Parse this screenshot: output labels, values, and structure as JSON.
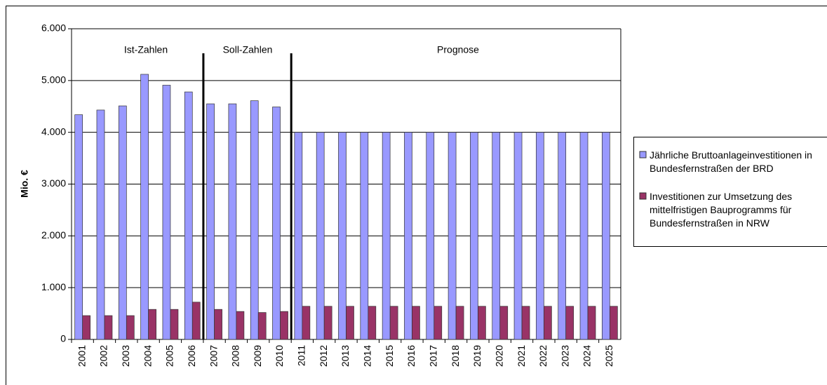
{
  "chart_data": {
    "type": "bar",
    "y_label": "Mio. €",
    "annotations": [
      "Ist-Zahlen",
      "Soll-Zahlen",
      "Prognose"
    ],
    "categories": [
      "2001",
      "2002",
      "2003",
      "2004",
      "2005",
      "2006",
      "2007",
      "2008",
      "2009",
      "2010",
      "2011",
      "2012",
      "2013",
      "2014",
      "2015",
      "2016",
      "2017",
      "2018",
      "2019",
      "2020",
      "2021",
      "2022",
      "2023",
      "2024",
      "2025"
    ],
    "series": [
      {
        "name": "Jährliche Bruttoanlageinvestitionen in Bundesfernstraßen der BRD",
        "color": "#9999ff",
        "values": [
          4340,
          4430,
          4510,
          5120,
          4910,
          4780,
          4550,
          4550,
          4610,
          4490,
          4000,
          4000,
          4000,
          4000,
          4000,
          4000,
          4000,
          4000,
          4000,
          4000,
          4000,
          4000,
          4000,
          4000,
          4000
        ]
      },
      {
        "name": "Investitionen zur Umsetzung des mittelfristigen Bauprogramms für Bundesfernstraßen in NRW",
        "color": "#993366",
        "values": [
          460,
          460,
          460,
          580,
          580,
          720,
          580,
          540,
          520,
          540,
          640,
          640,
          640,
          640,
          640,
          640,
          640,
          640,
          640,
          640,
          640,
          640,
          640,
          640,
          640
        ]
      }
    ],
    "ylim": [
      0,
      6000
    ],
    "yticks": [
      0,
      {
        "value": 1000,
        "label": "1.000"
      },
      {
        "value": 2000,
        "label": "2.000"
      },
      {
        "value": 3000,
        "label": "3.000"
      },
      {
        "value": 4000,
        "label": "4.000"
      },
      {
        "value": 5000,
        "label": "5.000"
      },
      {
        "value": 6000,
        "label": "6.000"
      }
    ],
    "grid": true,
    "legend": "right"
  }
}
